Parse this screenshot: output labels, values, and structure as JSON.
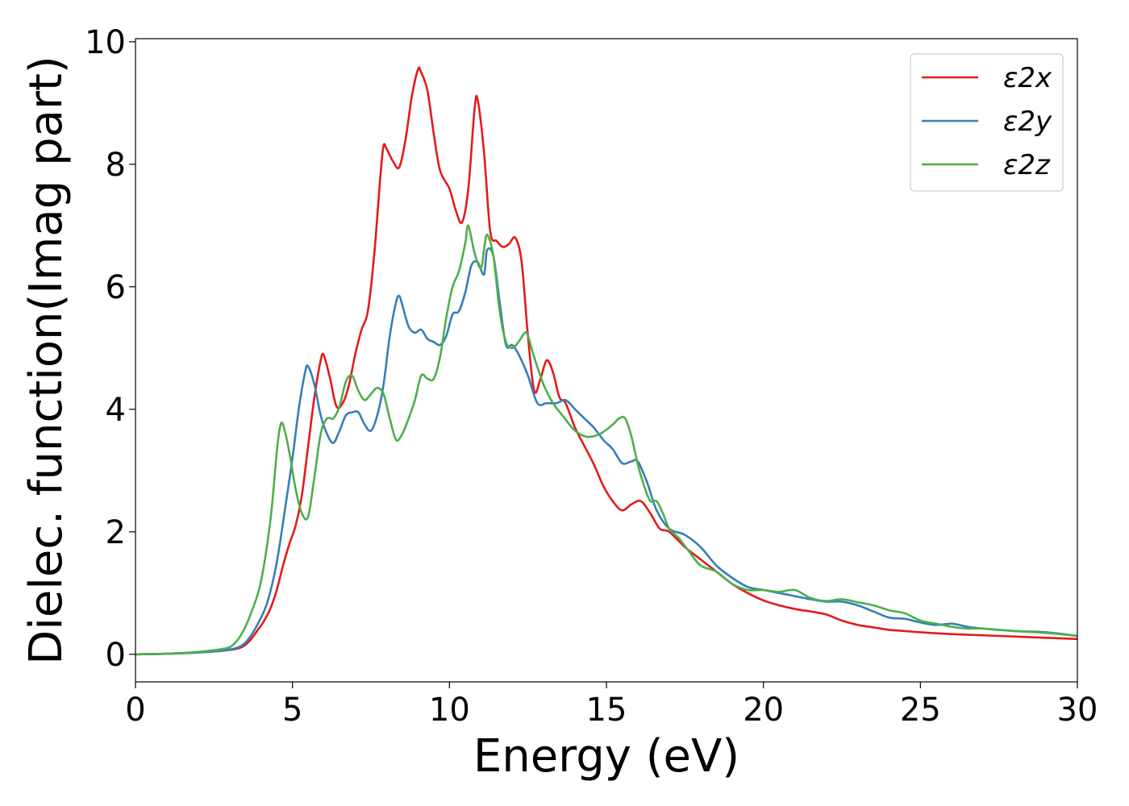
{
  "chart_data": {
    "type": "line",
    "xlabel": "Energy (eV)",
    "ylabel": "Dielec. function(Imag part)",
    "xlim": [
      0,
      30
    ],
    "ylim": [
      -0.45,
      10.05
    ],
    "xticks": [
      0,
      5,
      10,
      15,
      20,
      25,
      30
    ],
    "yticks": [
      0,
      2,
      4,
      6,
      8,
      10
    ],
    "xtick_labels": [
      "0",
      "5",
      "10",
      "15",
      "20",
      "25",
      "30"
    ],
    "ytick_labels": [
      "0",
      "2",
      "4",
      "6",
      "8",
      "10"
    ],
    "grid": false,
    "legend_position": "top-right",
    "series": [
      {
        "name": "ε2x",
        "color": "#e41a1c",
        "x": [
          0,
          1,
          2,
          2.8,
          3.3,
          3.6,
          3.9,
          4.1,
          4.3,
          4.5,
          4.7,
          4.9,
          5.1,
          5.3,
          5.5,
          5.7,
          5.9,
          6.0,
          6.2,
          6.4,
          6.6,
          6.8,
          7.0,
          7.2,
          7.4,
          7.6,
          7.8,
          7.9,
          8.0,
          8.2,
          8.4,
          8.6,
          8.8,
          9.0,
          9.1,
          9.3,
          9.5,
          9.7,
          10.0,
          10.2,
          10.4,
          10.6,
          10.8,
          10.9,
          11.1,
          11.3,
          11.5,
          11.7,
          11.9,
          12.1,
          12.3,
          12.5,
          12.7,
          12.9,
          13.1,
          13.3,
          13.5,
          13.7,
          14.0,
          14.3,
          14.6,
          14.9,
          15.2,
          15.5,
          15.8,
          16.1,
          16.4,
          16.7,
          17.0,
          17.5,
          18.0,
          18.5,
          19.0,
          19.5,
          20.0,
          20.5,
          21.0,
          21.5,
          22.0,
          22.5,
          23.0,
          23.5,
          24.0,
          24.5,
          25.0,
          26.0,
          27.0,
          28.0,
          29.0,
          30.0
        ],
        "y": [
          0,
          0.01,
          0.03,
          0.06,
          0.1,
          0.2,
          0.4,
          0.55,
          0.75,
          1.05,
          1.45,
          1.8,
          2.1,
          2.6,
          3.4,
          4.2,
          4.8,
          4.88,
          4.5,
          4.05,
          4.1,
          4.4,
          4.9,
          5.3,
          5.6,
          6.5,
          7.8,
          8.3,
          8.25,
          8.05,
          7.95,
          8.4,
          9.1,
          9.55,
          9.5,
          9.2,
          8.5,
          7.9,
          7.6,
          7.25,
          7.05,
          7.6,
          8.9,
          9.05,
          8.2,
          6.9,
          6.75,
          6.65,
          6.7,
          6.8,
          6.4,
          5.2,
          4.3,
          4.5,
          4.8,
          4.6,
          4.2,
          4.1,
          3.7,
          3.4,
          3.1,
          2.75,
          2.5,
          2.35,
          2.45,
          2.5,
          2.3,
          2.05,
          2.0,
          1.75,
          1.55,
          1.35,
          1.15,
          1.0,
          0.88,
          0.8,
          0.74,
          0.7,
          0.65,
          0.55,
          0.48,
          0.44,
          0.4,
          0.38,
          0.36,
          0.33,
          0.31,
          0.29,
          0.27,
          0.25
        ]
      },
      {
        "name": "ε2y",
        "color": "#377eb8",
        "x": [
          0,
          1,
          2,
          2.8,
          3.3,
          3.6,
          3.9,
          4.2,
          4.5,
          4.8,
          5.0,
          5.2,
          5.4,
          5.5,
          5.7,
          5.9,
          6.1,
          6.3,
          6.5,
          6.7,
          6.9,
          7.1,
          7.3,
          7.5,
          7.7,
          7.9,
          8.1,
          8.3,
          8.4,
          8.5,
          8.7,
          8.9,
          9.1,
          9.3,
          9.5,
          9.7,
          9.9,
          10.1,
          10.3,
          10.5,
          10.7,
          10.9,
          11.1,
          11.2,
          11.4,
          11.6,
          11.8,
          12.0,
          12.2,
          12.5,
          12.8,
          13.1,
          13.4,
          13.7,
          14.0,
          14.3,
          14.6,
          14.9,
          15.2,
          15.5,
          15.8,
          16.0,
          16.3,
          16.6,
          17.0,
          17.5,
          18.0,
          18.5,
          19.0,
          19.5,
          20.0,
          20.5,
          21.0,
          21.5,
          22.0,
          22.5,
          23.0,
          23.5,
          24.0,
          24.5,
          25.0,
          25.5,
          26.0,
          26.5,
          27.0,
          28.0,
          29.0,
          30.0
        ],
        "y": [
          0,
          0.01,
          0.03,
          0.06,
          0.12,
          0.25,
          0.5,
          0.85,
          1.5,
          2.5,
          3.2,
          4.0,
          4.6,
          4.7,
          4.4,
          3.9,
          3.6,
          3.45,
          3.65,
          3.9,
          3.95,
          3.95,
          3.75,
          3.65,
          3.9,
          4.4,
          5.2,
          5.75,
          5.85,
          5.7,
          5.35,
          5.25,
          5.3,
          5.15,
          5.1,
          5.05,
          5.2,
          5.55,
          5.6,
          5.9,
          6.35,
          6.4,
          6.2,
          6.6,
          6.5,
          5.75,
          5.05,
          5.05,
          4.9,
          4.55,
          4.1,
          4.1,
          4.1,
          4.15,
          4.0,
          3.85,
          3.7,
          3.5,
          3.35,
          3.12,
          3.15,
          3.15,
          2.8,
          2.35,
          2.05,
          1.95,
          1.75,
          1.45,
          1.25,
          1.1,
          1.05,
          1.0,
          0.95,
          0.9,
          0.86,
          0.86,
          0.8,
          0.7,
          0.6,
          0.58,
          0.52,
          0.48,
          0.5,
          0.45,
          0.42,
          0.38,
          0.36,
          0.3
        ]
      },
      {
        "name": "ε2z",
        "color": "#4daf4a",
        "x": [
          0,
          1,
          2,
          2.8,
          3.1,
          3.4,
          3.7,
          4.0,
          4.3,
          4.5,
          4.6,
          4.7,
          4.9,
          5.1,
          5.3,
          5.5,
          5.7,
          5.9,
          6.1,
          6.3,
          6.5,
          6.7,
          6.9,
          7.1,
          7.3,
          7.5,
          7.7,
          7.9,
          8.1,
          8.3,
          8.5,
          8.7,
          8.9,
          9.1,
          9.3,
          9.5,
          9.7,
          9.9,
          10.1,
          10.3,
          10.5,
          10.6,
          10.8,
          11.0,
          11.1,
          11.2,
          11.4,
          11.6,
          11.8,
          12.0,
          12.2,
          12.4,
          12.5,
          12.7,
          13.0,
          13.3,
          13.6,
          14.0,
          14.4,
          14.8,
          15.2,
          15.4,
          15.6,
          15.8,
          16.0,
          16.2,
          16.4,
          16.6,
          16.8,
          17.0,
          17.3,
          17.6,
          18.0,
          18.5,
          19.0,
          19.5,
          20.0,
          20.5,
          21.0,
          21.5,
          22.0,
          22.5,
          23.0,
          23.5,
          24.0,
          24.5,
          25.0,
          25.5,
          26.0,
          26.5,
          27.0,
          28.0,
          29.0,
          30.0
        ],
        "y": [
          0,
          0.01,
          0.04,
          0.09,
          0.15,
          0.35,
          0.7,
          1.2,
          2.2,
          3.3,
          3.7,
          3.75,
          3.3,
          2.7,
          2.3,
          2.25,
          2.9,
          3.6,
          3.85,
          3.85,
          4.05,
          4.45,
          4.55,
          4.3,
          4.15,
          4.25,
          4.35,
          4.25,
          3.85,
          3.5,
          3.6,
          3.85,
          4.15,
          4.55,
          4.5,
          4.5,
          4.85,
          5.5,
          6.0,
          6.25,
          6.7,
          7.0,
          6.55,
          6.3,
          6.6,
          6.85,
          6.5,
          5.6,
          5.1,
          5.0,
          5.1,
          5.25,
          5.2,
          4.85,
          4.4,
          4.1,
          3.9,
          3.65,
          3.55,
          3.6,
          3.75,
          3.85,
          3.85,
          3.55,
          3.1,
          2.75,
          2.5,
          2.5,
          2.3,
          2.05,
          1.9,
          1.7,
          1.45,
          1.35,
          1.15,
          1.05,
          1.05,
          1.02,
          1.05,
          0.92,
          0.87,
          0.9,
          0.85,
          0.8,
          0.72,
          0.67,
          0.55,
          0.5,
          0.45,
          0.42,
          0.42,
          0.38,
          0.35,
          0.3
        ]
      }
    ]
  }
}
